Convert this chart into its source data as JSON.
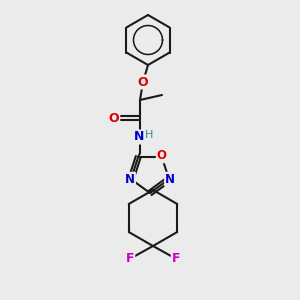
{
  "background_color": "#ebebeb",
  "bond_color": "#1a1a1a",
  "bond_width": 1.5,
  "O_color": "#dd0000",
  "N_color": "#0000cc",
  "F_color": "#cc00cc",
  "H_color": "#3a8a8a",
  "figsize": [
    3.0,
    3.0
  ],
  "dpi": 100,
  "xlim": [
    0,
    300
  ],
  "ylim": [
    0,
    300
  ]
}
